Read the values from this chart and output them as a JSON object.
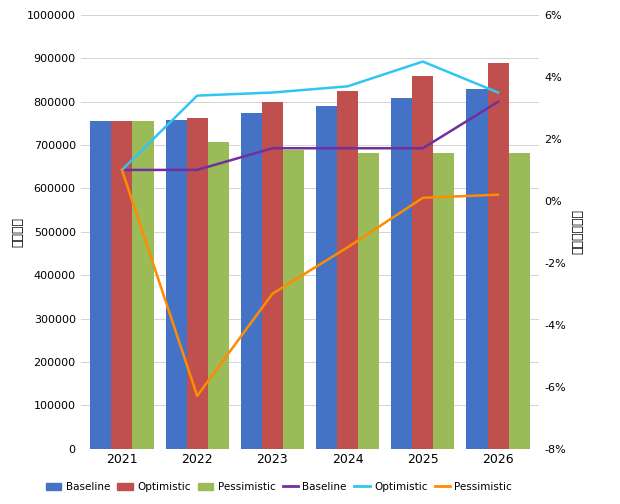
{
  "years": [
    2021,
    2022,
    2023,
    2024,
    2025,
    2026
  ],
  "bar_baseline": [
    755000,
    758000,
    775000,
    790000,
    808000,
    830000
  ],
  "bar_optimistic": [
    755000,
    763000,
    800000,
    825000,
    860000,
    890000
  ],
  "bar_pessimistic": [
    755000,
    707000,
    688000,
    683000,
    683000,
    683000
  ],
  "line_baseline": [
    1.0,
    1.0,
    1.7,
    1.7,
    1.7,
    3.2
  ],
  "line_optimistic": [
    1.0,
    3.4,
    3.5,
    3.7,
    4.5,
    3.5
  ],
  "line_pessimistic": [
    1.0,
    -6.3,
    -3.0,
    -1.5,
    0.1,
    0.2
  ],
  "bar_colors": {
    "baseline": "#4472C4",
    "optimistic": "#C0504D",
    "pessimistic": "#9BBB59"
  },
  "line_colors": {
    "baseline": "#7030A0",
    "optimistic": "#31C5F4",
    "pessimistic": "#FF8C00"
  },
  "ylabel_left": "（億円）",
  "ylabel_right": "前年比成長率",
  "ylim_left": [
    0,
    1000000
  ],
  "ylim_right": [
    -8,
    6
  ],
  "yticks_left": [
    0,
    100000,
    200000,
    300000,
    400000,
    500000,
    600000,
    700000,
    800000,
    900000,
    1000000
  ],
  "yticks_right": [
    -8,
    -6,
    -4,
    -2,
    0,
    2,
    4,
    6
  ],
  "background_color": "#FFFFFF",
  "grid_color": "#D3D3D3",
  "bar_width": 0.28
}
